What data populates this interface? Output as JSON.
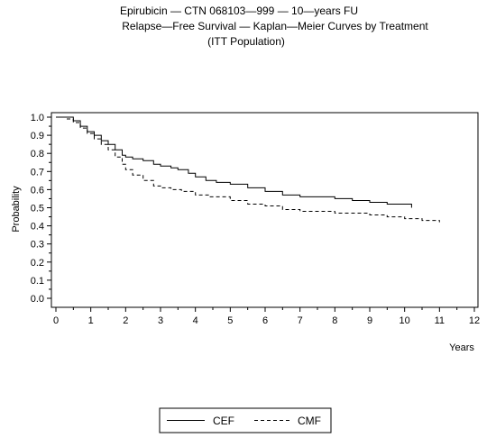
{
  "chart_data": {
    "type": "line",
    "title": [
      "Epirubicin  —  CTN  068103—999  —  10—years  FU",
      "Relapse—Free  Survival  —  Kaplan—Meier  Curves  by  Treatment",
      "(ITT  Population)"
    ],
    "xlabel": "Years",
    "ylabel": "Probability",
    "xlim": [
      0,
      12
    ],
    "ylim": [
      0,
      1
    ],
    "x_ticks": [
      "0",
      "1",
      "2",
      "3",
      "4",
      "5",
      "6",
      "7",
      "8",
      "9",
      "10",
      "11",
      "12"
    ],
    "y_ticks": [
      "0.0",
      "0.1",
      "0.2",
      "0.3",
      "0.4",
      "0.5",
      "0.6",
      "0.7",
      "0.8",
      "0.9",
      "1.0"
    ],
    "grid": false,
    "legend_position": "bottom-center",
    "series": [
      {
        "name": "CEF",
        "line_style": "solid",
        "color": "#000000",
        "points": [
          [
            0,
            1.0
          ],
          [
            0.3,
            1.0
          ],
          [
            0.5,
            0.98
          ],
          [
            0.7,
            0.95
          ],
          [
            0.9,
            0.92
          ],
          [
            1.1,
            0.9
          ],
          [
            1.3,
            0.87
          ],
          [
            1.5,
            0.85
          ],
          [
            1.7,
            0.82
          ],
          [
            1.9,
            0.79
          ],
          [
            2.0,
            0.78
          ],
          [
            2.2,
            0.77
          ],
          [
            2.5,
            0.76
          ],
          [
            2.8,
            0.74
          ],
          [
            3.0,
            0.73
          ],
          [
            3.3,
            0.72
          ],
          [
            3.5,
            0.71
          ],
          [
            3.8,
            0.69
          ],
          [
            4.0,
            0.67
          ],
          [
            4.3,
            0.65
          ],
          [
            4.6,
            0.64
          ],
          [
            5.0,
            0.63
          ],
          [
            5.5,
            0.61
          ],
          [
            6.0,
            0.59
          ],
          [
            6.5,
            0.57
          ],
          [
            7.0,
            0.56
          ],
          [
            7.5,
            0.56
          ],
          [
            8.0,
            0.55
          ],
          [
            8.5,
            0.54
          ],
          [
            9.0,
            0.53
          ],
          [
            9.5,
            0.52
          ],
          [
            10.0,
            0.52
          ],
          [
            10.2,
            0.5
          ]
        ]
      },
      {
        "name": "CMF",
        "line_style": "dashed",
        "color": "#000000",
        "points": [
          [
            0,
            1.0
          ],
          [
            0.3,
            0.99
          ],
          [
            0.5,
            0.97
          ],
          [
            0.7,
            0.94
          ],
          [
            0.9,
            0.91
          ],
          [
            1.1,
            0.88
          ],
          [
            1.3,
            0.85
          ],
          [
            1.5,
            0.82
          ],
          [
            1.7,
            0.78
          ],
          [
            1.9,
            0.74
          ],
          [
            2.0,
            0.71
          ],
          [
            2.2,
            0.68
          ],
          [
            2.5,
            0.65
          ],
          [
            2.8,
            0.62
          ],
          [
            3.0,
            0.61
          ],
          [
            3.3,
            0.6
          ],
          [
            3.6,
            0.59
          ],
          [
            4.0,
            0.57
          ],
          [
            4.4,
            0.56
          ],
          [
            5.0,
            0.54
          ],
          [
            5.5,
            0.52
          ],
          [
            6.0,
            0.51
          ],
          [
            6.5,
            0.49
          ],
          [
            7.0,
            0.48
          ],
          [
            7.5,
            0.48
          ],
          [
            8.0,
            0.47
          ],
          [
            8.5,
            0.47
          ],
          [
            9.0,
            0.46
          ],
          [
            9.5,
            0.45
          ],
          [
            10.0,
            0.44
          ],
          [
            10.5,
            0.43
          ],
          [
            11.0,
            0.42
          ]
        ]
      }
    ]
  }
}
